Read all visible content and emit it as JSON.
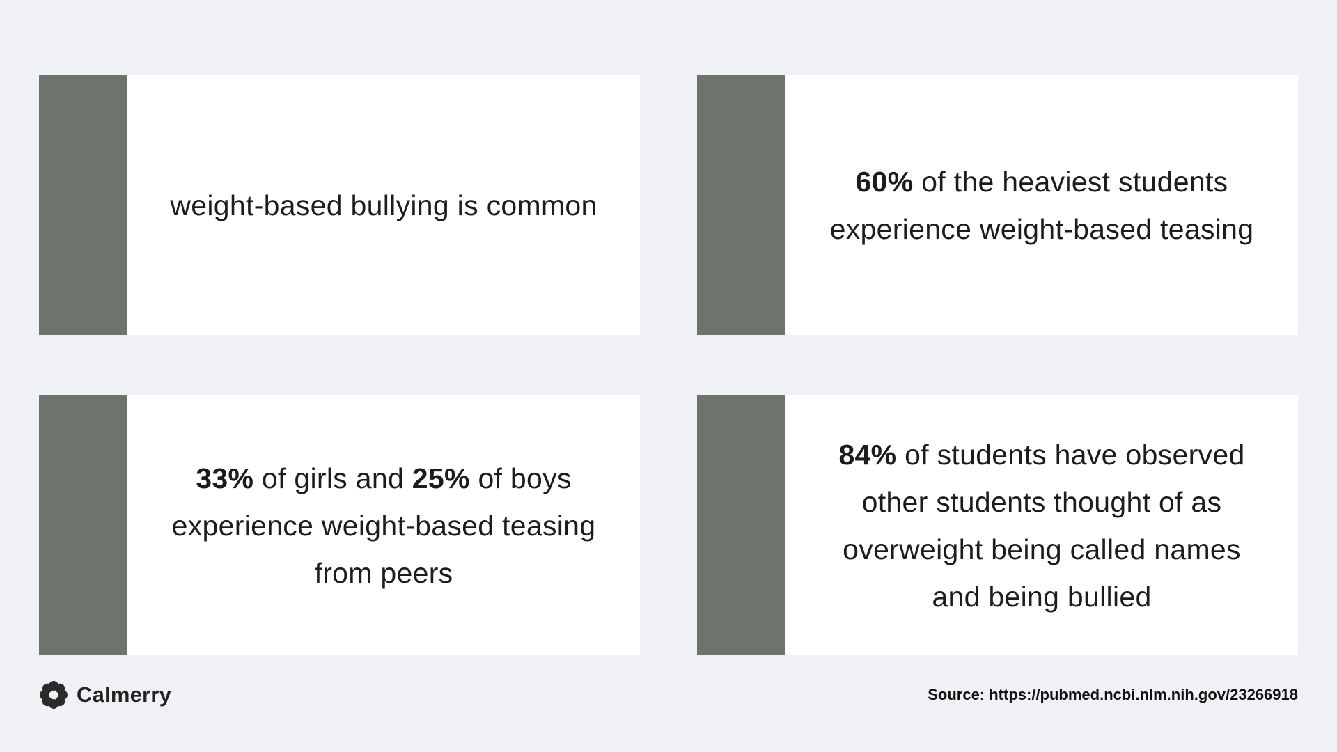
{
  "cards": [
    {
      "parts": [
        {
          "text": "weight-based bullying is common",
          "bold": false
        }
      ]
    },
    {
      "parts": [
        {
          "text": "60%",
          "bold": true
        },
        {
          "text": " of the heaviest students experience weight-based teasing",
          "bold": false
        }
      ]
    },
    {
      "parts": [
        {
          "text": "33%",
          "bold": true
        },
        {
          "text": " of girls and ",
          "bold": false
        },
        {
          "text": "25%",
          "bold": true
        },
        {
          "text": " of boys experience weight-based teasing from peers",
          "bold": false
        }
      ]
    },
    {
      "parts": [
        {
          "text": "84%",
          "bold": true
        },
        {
          "text": " of students have observed other students thought of as overweight being called names and being bullied",
          "bold": false
        }
      ]
    }
  ],
  "brand": {
    "name": "Calmerry",
    "icon": "flower-logo-icon"
  },
  "source": "Source: https://pubmed.ncbi.nlm.nih.gov/23266918",
  "colors": {
    "background": "#f0f1f5",
    "card": "#ffffff",
    "accent_bar": "#6e736b",
    "text": "#1c1c1c"
  }
}
